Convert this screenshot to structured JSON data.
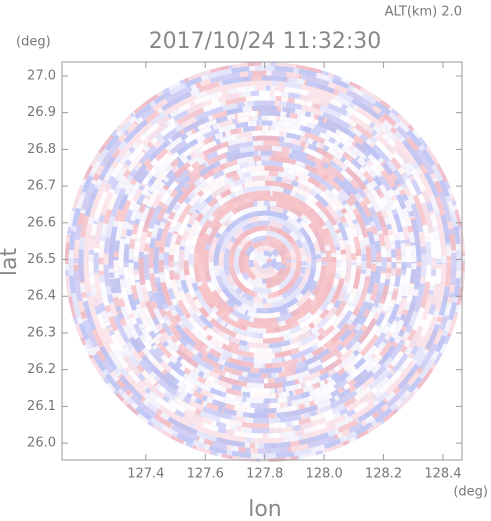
{
  "chart_data": {
    "type": "radar-ppi",
    "title": "2017/10/24 11:32:30",
    "subtitle": "ALT(km) 2.0",
    "x_label": "lon",
    "x_unit": "(deg)",
    "y_label": "lat",
    "y_unit": "(deg)",
    "xlim": [
      127.118,
      128.464
    ],
    "ylim": [
      25.954,
      27.038
    ],
    "xticks": [
      127.4,
      127.6,
      127.8,
      {
        "value": 128.0,
        "label": "128.0"
      },
      128.2,
      128.4
    ],
    "yticks": [
      {
        "value": 26.0,
        "label": "26.0"
      },
      26.1,
      26.2,
      26.3,
      26.4,
      26.5,
      26.6,
      26.7,
      26.8,
      26.9,
      {
        "value": 27.0,
        "label": "27.0"
      }
    ]
  }
}
